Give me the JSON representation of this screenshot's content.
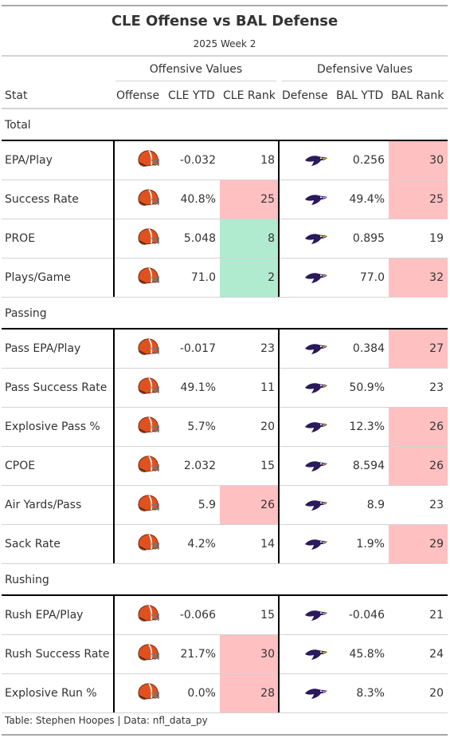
{
  "title": "CLE Offense vs BAL Defense",
  "subtitle": "2025 Week 2",
  "spanners": {
    "offense": "Offensive Values",
    "defense": "Defensive Values"
  },
  "columns": {
    "stat": "Stat",
    "offense": "Offense",
    "cle_ytd": "CLE YTD",
    "cle_rank": "CLE Rank",
    "defense": "Defense",
    "bal_ytd": "BAL YTD",
    "bal_rank": "BAL Rank"
  },
  "icons": {
    "offense": "browns-helmet-icon",
    "defense": "ravens-logo-icon"
  },
  "colors": {
    "bad_rank": "#ffc0c2",
    "good_rank": "#b1ebcf",
    "browns_orange": "#e0511f",
    "ravens_purple": "#2a1a5c"
  },
  "footer": "Table: Stephen Hoopes | Data: nfl_data_py",
  "chart_data": {
    "type": "table",
    "title": "CLE Offense vs BAL Defense",
    "subtitle": "2025 Week 2",
    "groups": [
      {
        "name": "Total",
        "rows": [
          {
            "stat": "EPA/Play",
            "cle_ytd": "-0.032",
            "cle_rank": 18,
            "cle_highlight": "none",
            "bal_ytd": "0.256",
            "bal_rank": 30,
            "bal_highlight": "bad"
          },
          {
            "stat": "Success Rate",
            "cle_ytd": "40.8%",
            "cle_rank": 25,
            "cle_highlight": "bad",
            "bal_ytd": "49.4%",
            "bal_rank": 25,
            "bal_highlight": "bad"
          },
          {
            "stat": "PROE",
            "cle_ytd": "5.048",
            "cle_rank": 8,
            "cle_highlight": "good",
            "bal_ytd": "0.895",
            "bal_rank": 19,
            "bal_highlight": "none"
          },
          {
            "stat": "Plays/Game",
            "cle_ytd": "71.0",
            "cle_rank": 2,
            "cle_highlight": "good",
            "bal_ytd": "77.0",
            "bal_rank": 32,
            "bal_highlight": "bad"
          }
        ]
      },
      {
        "name": "Passing",
        "rows": [
          {
            "stat": "Pass EPA/Play",
            "cle_ytd": "-0.017",
            "cle_rank": 23,
            "cle_highlight": "none",
            "bal_ytd": "0.384",
            "bal_rank": 27,
            "bal_highlight": "bad"
          },
          {
            "stat": "Pass Success Rate",
            "cle_ytd": "49.1%",
            "cle_rank": 11,
            "cle_highlight": "none",
            "bal_ytd": "50.9%",
            "bal_rank": 23,
            "bal_highlight": "none"
          },
          {
            "stat": "Explosive Pass %",
            "cle_ytd": "5.7%",
            "cle_rank": 20,
            "cle_highlight": "none",
            "bal_ytd": "12.3%",
            "bal_rank": 26,
            "bal_highlight": "bad"
          },
          {
            "stat": "CPOE",
            "cle_ytd": "2.032",
            "cle_rank": 15,
            "cle_highlight": "none",
            "bal_ytd": "8.594",
            "bal_rank": 26,
            "bal_highlight": "bad"
          },
          {
            "stat": "Air Yards/Pass",
            "cle_ytd": "5.9",
            "cle_rank": 26,
            "cle_highlight": "bad",
            "bal_ytd": "8.9",
            "bal_rank": 23,
            "bal_highlight": "none"
          },
          {
            "stat": "Sack Rate",
            "cle_ytd": "4.2%",
            "cle_rank": 14,
            "cle_highlight": "none",
            "bal_ytd": "1.9%",
            "bal_rank": 29,
            "bal_highlight": "bad"
          }
        ]
      },
      {
        "name": "Rushing",
        "rows": [
          {
            "stat": "Rush EPA/Play",
            "cle_ytd": "-0.066",
            "cle_rank": 15,
            "cle_highlight": "none",
            "bal_ytd": "-0.046",
            "bal_rank": 21,
            "bal_highlight": "none"
          },
          {
            "stat": "Rush Success Rate",
            "cle_ytd": "21.7%",
            "cle_rank": 30,
            "cle_highlight": "bad",
            "bal_ytd": "45.8%",
            "bal_rank": 24,
            "bal_highlight": "none"
          },
          {
            "stat": "Explosive Run %",
            "cle_ytd": "0.0%",
            "cle_rank": 28,
            "cle_highlight": "bad",
            "bal_ytd": "8.3%",
            "bal_rank": 20,
            "bal_highlight": "none"
          }
        ]
      }
    ]
  }
}
